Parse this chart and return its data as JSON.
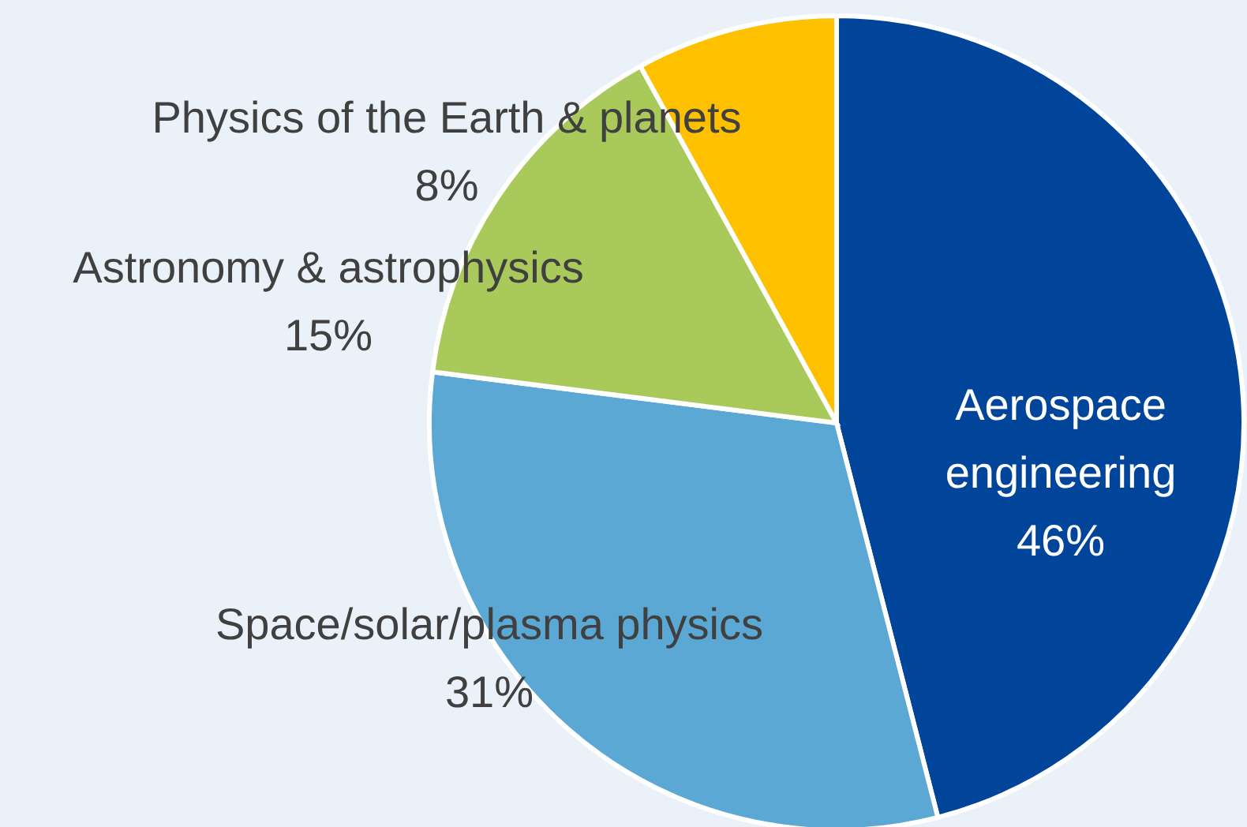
{
  "chart_data": {
    "type": "pie",
    "categories": [
      "Aerospace engineering",
      "Space/solar/plasma physics",
      "Astronomy & astrophysics",
      "Physics of the Earth & planets"
    ],
    "values": [
      46,
      31,
      15,
      8
    ],
    "colors": [
      "#00459a",
      "#5aa8d3",
      "#a9c95b",
      "#ffc000"
    ],
    "value_labels": [
      "46%",
      "31%",
      "15%",
      "8%"
    ]
  }
}
